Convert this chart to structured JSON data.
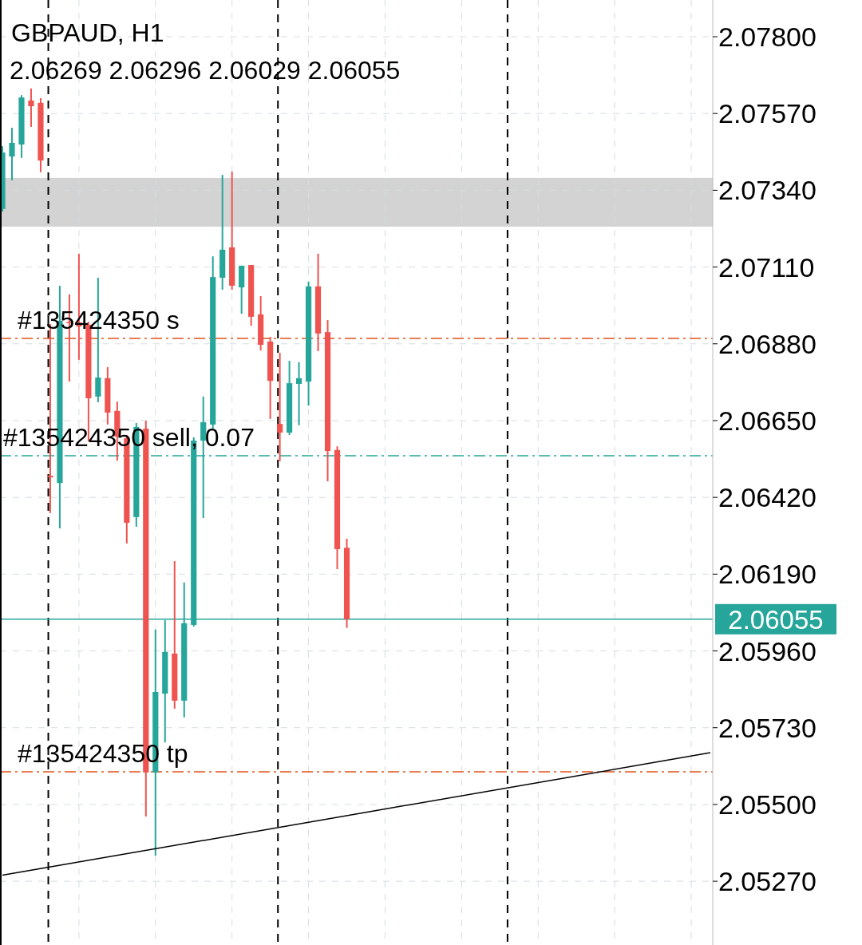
{
  "chart_data": {
    "type": "candlestick",
    "title": "GBPAUD, H1",
    "subtitle": "2.06269 2.06296 2.06029 2.06055",
    "categories": [
      null,
      null,
      null,
      null,
      null,
      null,
      null,
      null,
      null,
      null,
      null,
      null,
      null,
      null,
      null,
      null,
      null,
      null,
      null,
      null,
      null,
      null,
      null,
      null,
      null,
      null,
      null,
      null,
      null,
      null,
      null,
      null,
      null,
      null,
      null,
      null,
      null,
      null,
      null,
      null,
      null,
      null,
      null,
      null,
      null,
      null,
      null,
      null,
      null,
      null,
      null,
      null,
      null,
      null,
      null,
      null,
      null,
      null,
      null,
      null,
      null,
      null,
      null,
      null,
      null,
      null,
      null,
      null,
      null,
      null,
      null,
      null,
      null,
      null,
      null
    ],
    "series": [
      {
        "type": "candlestick",
        "ohlc": [
          [
            2.07284,
            2.07472,
            2.07276,
            2.07453
          ],
          [
            2.07441,
            2.07527,
            2.0737,
            2.07482
          ],
          [
            2.07477,
            2.07625,
            2.07437,
            2.07618
          ],
          [
            2.07609,
            2.07645,
            2.0753,
            2.07592
          ],
          [
            2.07602,
            2.07616,
            2.07394,
            2.07429
          ],
          [
            2.06485,
            2.06939,
            2.06373,
            2.0648
          ],
          [
            2.06463,
            2.07054,
            2.06327,
            2.06949
          ],
          [
            2.06946,
            2.07028,
            2.06767,
            2.06942
          ],
          [
            2.06944,
            2.0715,
            2.06832,
            2.06932
          ],
          [
            2.06937,
            2.06946,
            2.06588,
            2.06717
          ],
          [
            2.06722,
            2.07078,
            2.06705,
            2.06779
          ],
          [
            2.06777,
            2.0681,
            2.06638,
            2.06674
          ],
          [
            2.06679,
            2.06707,
            2.0653,
            2.06602
          ],
          [
            2.06597,
            2.06607,
            2.06282,
            2.06344
          ],
          [
            2.06361,
            2.06643,
            2.06332,
            2.06631
          ],
          [
            2.06626,
            2.0665,
            2.05464,
            2.05596
          ],
          [
            2.05596,
            2.06024,
            2.05347,
            2.05837
          ],
          [
            2.05832,
            2.06052,
            2.05686,
            2.05957
          ],
          [
            2.05952,
            2.06229,
            2.05787,
            2.05811
          ],
          [
            2.05811,
            2.06165,
            2.05761,
            2.06043
          ],
          [
            2.06038,
            2.066,
            2.06033,
            2.0659
          ],
          [
            2.0659,
            2.06722,
            2.06358,
            2.06645
          ],
          [
            2.06638,
            2.07142,
            2.06626,
            2.0708
          ],
          [
            2.07078,
            2.07386,
            2.07042,
            2.07162
          ],
          [
            2.07169,
            2.07396,
            2.07042,
            2.07054
          ],
          [
            2.07049,
            2.07114,
            2.0697,
            2.07114
          ],
          [
            2.07116,
            2.07116,
            2.06934,
            2.06961
          ],
          [
            2.06968,
            2.07023,
            2.0686,
            2.06877
          ],
          [
            2.06887,
            2.06901,
            2.06655,
            2.06769
          ],
          [
            2.0664,
            2.06853,
            2.06528,
            2.06614
          ],
          [
            2.06614,
            2.06829,
            2.06607,
            2.06762
          ],
          [
            2.0676,
            2.06825,
            2.06636,
            2.06777
          ],
          [
            2.06767,
            2.07066,
            2.06695,
            2.07052
          ],
          [
            2.07052,
            2.0715,
            2.06858,
            2.06911
          ],
          [
            2.06915,
            2.06951,
            2.06468,
            2.06559
          ],
          [
            2.06562,
            2.06573,
            2.06205,
            2.06265
          ],
          [
            2.06269,
            2.06296,
            2.06029,
            2.06055
          ],
          null,
          null,
          null,
          null,
          null,
          null,
          null,
          null,
          null,
          null,
          null,
          null,
          null,
          null,
          null,
          null,
          null,
          null,
          null,
          null,
          null,
          null,
          null,
          null,
          null,
          null,
          null,
          null,
          null,
          null,
          null,
          null,
          null,
          null,
          null,
          null,
          null,
          null
        ],
        "colors": [
          "#26a69a",
          "#26a69a",
          "#26a69a",
          "#ef5350",
          "#ef5350",
          "#ef5350",
          "#26a69a",
          "#ef5350",
          "#ef5350",
          "#ef5350",
          "#26a69a",
          "#ef5350",
          "#ef5350",
          "#ef5350",
          "#26a69a",
          "#ef5350",
          "#26a69a",
          "#26a69a",
          "#ef5350",
          "#26a69a",
          "#26a69a",
          "#26a69a",
          "#26a69a",
          "#26a69a",
          "#ef5350",
          "#26a69a",
          "#ef5350",
          "#ef5350",
          "#ef5350",
          "#ef5350",
          "#26a69a",
          "#26a69a",
          "#26a69a",
          "#ef5350",
          "#ef5350",
          "#ef5350",
          "#ef5350",
          null,
          null,
          null,
          null,
          null,
          null,
          null,
          null,
          null,
          null,
          null,
          null,
          null,
          null,
          null,
          null,
          null,
          null,
          null,
          null,
          null,
          null,
          null,
          null,
          null,
          null,
          null,
          null,
          null,
          null,
          null,
          null,
          null,
          null,
          null,
          null,
          null,
          null
        ]
      },
      {
        "type": "line",
        "color": "#000000",
        "values": [
          2.05288,
          null,
          null,
          null,
          null,
          null,
          null,
          null,
          null,
          null,
          null,
          null,
          null,
          null,
          null,
          null,
          null,
          null,
          null,
          null,
          null,
          null,
          null,
          null,
          null,
          null,
          null,
          null,
          null,
          null,
          null,
          null,
          null,
          null,
          null,
          null,
          null,
          null,
          null,
          null,
          null,
          null,
          null,
          null,
          null,
          null,
          null,
          null,
          null,
          null,
          null,
          null,
          null,
          null,
          null,
          null,
          null,
          null,
          null,
          null,
          null,
          null,
          null,
          null,
          null,
          null,
          null,
          null,
          null,
          null,
          null,
          null,
          null,
          null,
          2.05655
        ]
      }
    ],
    "ylim": [
      2.05079,
      2.0791
    ],
    "yticks": [
      {
        "value": 2.078,
        "label": "2.07800"
      },
      {
        "value": 2.0757,
        "label": "2.07570"
      },
      {
        "value": 2.0734,
        "label": "2.07340"
      },
      {
        "value": 2.0711,
        "label": "2.07110"
      },
      {
        "value": 2.0688,
        "label": "2.06880"
      },
      {
        "value": 2.0665,
        "label": "2.06650"
      },
      {
        "value": 2.0642,
        "label": "2.06420"
      },
      {
        "value": 2.0619,
        "label": "2.06190"
      },
      {
        "value": 2.0596,
        "label": "2.05960"
      },
      {
        "value": 2.0573,
        "label": "2.05730"
      },
      {
        "value": 2.055,
        "label": "2.05500"
      },
      {
        "value": 2.0527,
        "label": "2.05270"
      }
    ],
    "tick_labels": "y",
    "grid": true,
    "bands": [
      {
        "axis": "y",
        "from": 2.07231,
        "to": 2.07377,
        "color": "#d3d3d3"
      }
    ],
    "ref_lines": [
      {
        "axis": "y",
        "value": 2.06896,
        "label": "#135424350 s",
        "color": "#e0541c",
        "line_style": "dashed"
      },
      {
        "axis": "y",
        "value": 2.06545,
        "label": "#135424350 sell, 0.07",
        "color": "#26a69a",
        "line_style": "dashed"
      },
      {
        "axis": "y",
        "value": 2.05598,
        "label": "#135424350 tp",
        "color": "#e0541c",
        "line_style": "dashed"
      },
      {
        "axis": "y",
        "value": 2.06055,
        "label": "2.06055",
        "color": "#26a69a",
        "line_style": "solid"
      }
    ]
  }
}
